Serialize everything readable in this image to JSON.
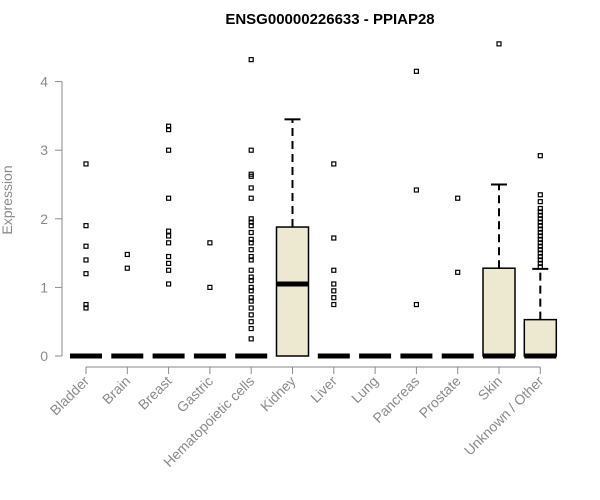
{
  "chart_data": {
    "type": "box",
    "title": "ENSG00000226633 - PPIAP28",
    "xlabel": "",
    "ylabel": "Expression",
    "ylim": [
      0,
      4.6
    ],
    "yticks": [
      0,
      1,
      2,
      3,
      4
    ],
    "box_color": "#ede8d0",
    "categories": [
      "Bladder",
      "Brain",
      "Breast",
      "Gastric",
      "Hematopoietic cells",
      "Kidney",
      "Liver",
      "Lung",
      "Pancreas",
      "Prostate",
      "Skin",
      "Unknown / Other"
    ],
    "boxes": [
      {
        "min": 0,
        "q1": 0,
        "median": 0,
        "q3": 0,
        "max": 0,
        "outliers": [
          0.7,
          0.75,
          1.2,
          1.4,
          1.6,
          1.9,
          2.8
        ]
      },
      {
        "min": 0,
        "q1": 0,
        "median": 0,
        "q3": 0,
        "max": 0,
        "outliers": [
          1.28,
          1.48
        ]
      },
      {
        "min": 0,
        "q1": 0,
        "median": 0,
        "q3": 0,
        "max": 0,
        "outliers": [
          1.05,
          1.25,
          1.35,
          1.45,
          1.65,
          1.75,
          1.82,
          2.3,
          3.0,
          3.3,
          3.35
        ]
      },
      {
        "min": 0,
        "q1": 0,
        "median": 0,
        "q3": 0,
        "max": 0,
        "outliers": [
          1.0,
          1.65
        ]
      },
      {
        "min": 0,
        "q1": 0,
        "median": 0,
        "q3": 0,
        "max": 0,
        "outliers": [
          0.25,
          0.4,
          0.5,
          0.6,
          0.7,
          0.8,
          0.85,
          0.95,
          1.0,
          1.1,
          1.15,
          1.25,
          1.4,
          1.45,
          1.55,
          1.65,
          1.7,
          1.8,
          1.9,
          1.95,
          2.0,
          2.3,
          2.45,
          2.62,
          2.65,
          3.0,
          4.32
        ]
      },
      {
        "min": 0,
        "q1": 0,
        "median": 1.05,
        "q3": 1.88,
        "max": 3.45,
        "outliers": []
      },
      {
        "min": 0,
        "q1": 0,
        "median": 0,
        "q3": 0,
        "max": 0,
        "outliers": [
          0.75,
          0.85,
          0.95,
          1.05,
          1.25,
          1.72,
          2.8
        ]
      },
      {
        "min": 0,
        "q1": 0,
        "median": 0,
        "q3": 0,
        "max": 0,
        "outliers": []
      },
      {
        "min": 0,
        "q1": 0,
        "median": 0,
        "q3": 0,
        "max": 0,
        "outliers": [
          0.75,
          2.42,
          4.15
        ]
      },
      {
        "min": 0,
        "q1": 0,
        "median": 0,
        "q3": 0,
        "max": 0,
        "outliers": [
          1.22,
          2.3
        ]
      },
      {
        "min": 0,
        "q1": 0,
        "median": 0,
        "q3": 1.28,
        "max": 2.5,
        "outliers": [
          4.55
        ]
      },
      {
        "min": 0,
        "q1": 0,
        "median": 0,
        "q3": 0.53,
        "max": 1.27,
        "outliers": [
          1.3,
          1.35,
          1.4,
          1.45,
          1.5,
          1.55,
          1.6,
          1.65,
          1.7,
          1.75,
          1.8,
          1.85,
          1.9,
          1.95,
          2.0,
          2.05,
          2.1,
          2.15,
          2.25,
          2.35,
          2.92
        ]
      }
    ]
  }
}
